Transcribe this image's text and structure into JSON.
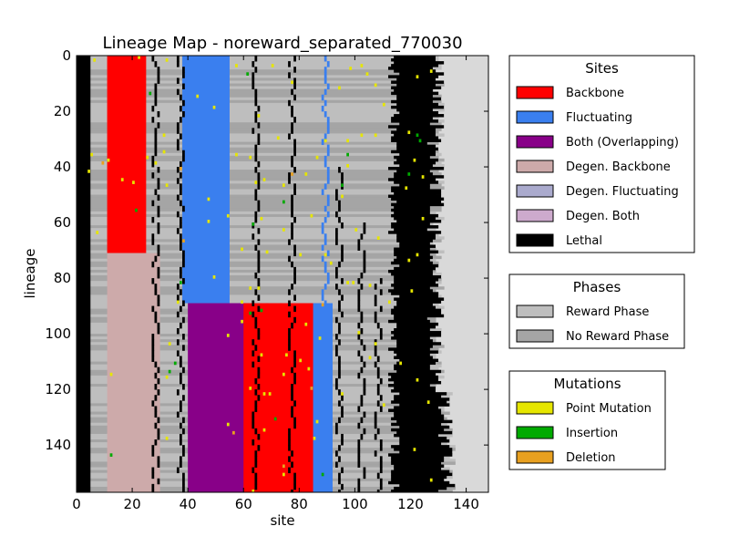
{
  "chart_data": {
    "type": "heatmap",
    "title": "Lineage Map - noreward_separated_770030",
    "xlabel": "site",
    "ylabel": "lineage",
    "xlim": [
      0,
      148
    ],
    "ylim": [
      157,
      0
    ],
    "x_ticks": [
      0,
      20,
      40,
      60,
      80,
      100,
      120,
      140
    ],
    "y_ticks": [
      0,
      20,
      40,
      60,
      80,
      100,
      120,
      140
    ],
    "num_lineages": 157,
    "legend_placement": "right",
    "legends": [
      {
        "title": "Sites",
        "entries": [
          {
            "label": "Backbone",
            "color": "#ff0000"
          },
          {
            "label": "Fluctuating",
            "color": "#3a7fef"
          },
          {
            "label": "Both (Overlapping)",
            "color": "#880088"
          },
          {
            "label": "Degen. Backbone",
            "color": "#cdaaaa"
          },
          {
            "label": "Degen. Fluctuating",
            "color": "#aaaacd"
          },
          {
            "label": "Degen. Both",
            "color": "#cdaacd"
          },
          {
            "label": "Lethal",
            "color": "#000000"
          }
        ]
      },
      {
        "title": "Phases",
        "entries": [
          {
            "label": "Reward Phase",
            "color": "#bebebe"
          },
          {
            "label": "No Reward Phase",
            "color": "#a5a5a5"
          }
        ]
      },
      {
        "title": "Mutations",
        "entries": [
          {
            "label": "Point Mutation",
            "color": "#e6e600"
          },
          {
            "label": "Insertion",
            "color": "#00aa00"
          },
          {
            "label": "Deletion",
            "color": "#e8a020"
          }
        ]
      }
    ],
    "segments": [
      {
        "label": "Lethal",
        "lineages": [
          0,
          157
        ],
        "sites": [
          0,
          5
        ]
      },
      {
        "label": "Backbone",
        "lineages": [
          0,
          71
        ],
        "sites": [
          11,
          25
        ]
      },
      {
        "label": "Fluctuating",
        "lineages": [
          0,
          89
        ],
        "sites": [
          38,
          55
        ]
      },
      {
        "label": "Degen. Backbone",
        "lineages": [
          71,
          157
        ],
        "sites": [
          11,
          30
        ]
      },
      {
        "label": "Both (Overlapping)",
        "lineages": [
          89,
          157
        ],
        "sites": [
          40,
          62
        ]
      },
      {
        "label": "Backbone",
        "lineages": [
          89,
          157
        ],
        "sites": [
          60,
          88
        ]
      },
      {
        "label": "Fluctuating",
        "lineages": [
          89,
          157
        ],
        "sites": [
          85,
          92
        ]
      },
      {
        "label": "Lethal",
        "lineages": [
          0,
          157
        ],
        "sites": [
          112,
          137
        ]
      }
    ]
  }
}
